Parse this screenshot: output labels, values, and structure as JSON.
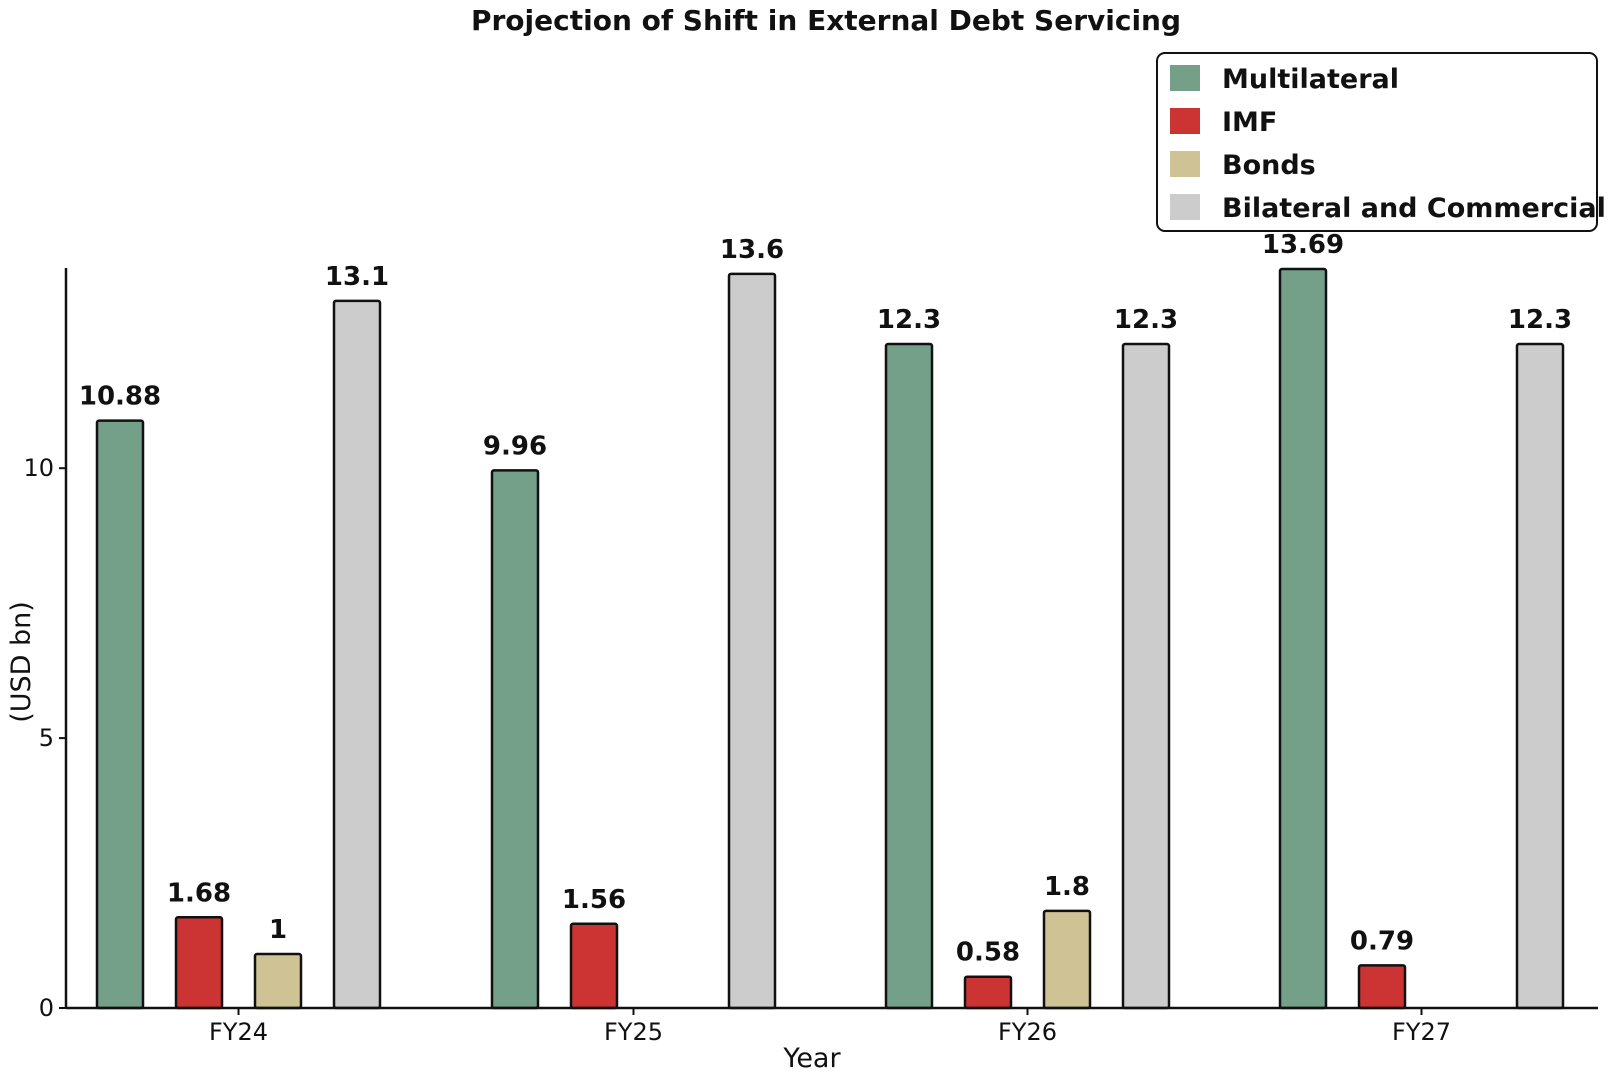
{
  "chart_data": {
    "type": "bar",
    "title": "Projection of Shift in External Debt Servicing",
    "xlabel": "Year",
    "ylabel": "(USD bn)",
    "categories": [
      "FY24",
      "FY25",
      "FY26",
      "FY27"
    ],
    "series": [
      {
        "name": "Multilateral",
        "color": "#74a08a",
        "values": [
          10.88,
          9.96,
          12.3,
          13.69
        ],
        "labels": [
          "10.88",
          "9.96",
          "12.3",
          "13.69"
        ]
      },
      {
        "name": "IMF",
        "color": "#cc3333",
        "values": [
          1.68,
          1.56,
          0.58,
          0.79
        ],
        "labels": [
          "1.68",
          "1.56",
          "0.58",
          "0.79"
        ]
      },
      {
        "name": "Bonds",
        "color": "#cfc395",
        "values": [
          1,
          0,
          1.8,
          0
        ],
        "labels": [
          "1",
          "",
          "1.8",
          ""
        ]
      },
      {
        "name": "Bilateral and Commercial",
        "color": "#cccccc",
        "values": [
          13.1,
          13.6,
          12.3,
          12.3
        ],
        "labels": [
          "13.1",
          "13.6",
          "12.3",
          "12.3"
        ]
      }
    ],
    "yticks": [
      0,
      5,
      10
    ],
    "ytick_labels": [
      "0",
      "5",
      "10"
    ],
    "ylim": [
      0,
      13.69
    ],
    "grid": false,
    "legend_position": "top-right"
  }
}
